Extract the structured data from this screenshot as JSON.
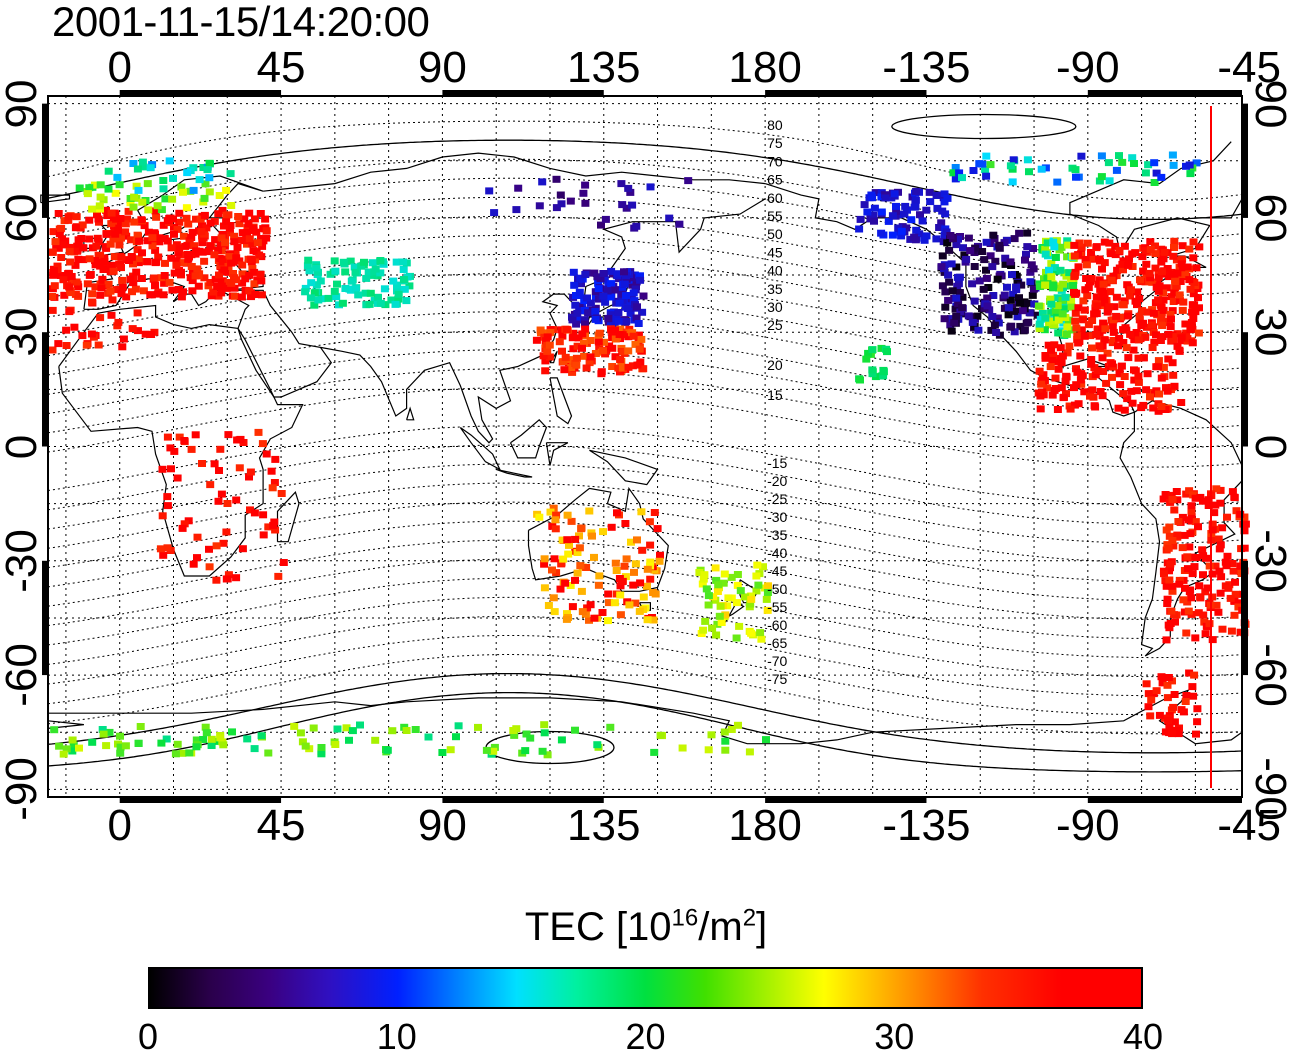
{
  "title": "2001-11-15/14:20:00",
  "colorbar": {
    "label_main": "TEC  [10",
    "label_sup1": "16",
    "label_mid": "/m",
    "label_sup2": "2",
    "label_end": "]",
    "min": 0,
    "max": 40,
    "ticks": [
      "0",
      "10",
      "20",
      "30",
      "40"
    ],
    "colormap": [
      "#000000",
      "#3a0080",
      "#0020ff",
      "#00e0ff",
      "#00e040",
      "#a0f000",
      "#ffff00",
      "#ff8000",
      "#ff0000"
    ]
  },
  "axes": {
    "lon_ticks": [
      "0",
      "45",
      "90",
      "135",
      "180",
      "-135",
      "-90",
      "-45"
    ],
    "lat_ticks": [
      "90",
      "60",
      "30",
      "0",
      "-30",
      "-60",
      "-90"
    ]
  },
  "contour_labels_north": [
    "80",
    "75",
    "70",
    "65",
    "60",
    "55",
    "50",
    "45",
    "40",
    "35",
    "30",
    "25",
    "20",
    "15"
  ],
  "contour_labels_south": [
    "-15",
    "-20",
    "-25",
    "-30",
    "-35",
    "-40",
    "-45",
    "-50",
    "-55",
    "-60",
    "-65",
    "-70",
    "-75"
  ],
  "marker_line_color": "#ff0000",
  "map_extent": {
    "lon_start": -20,
    "lon_end": 313,
    "lat_min": -92,
    "lat_max": 92
  }
}
